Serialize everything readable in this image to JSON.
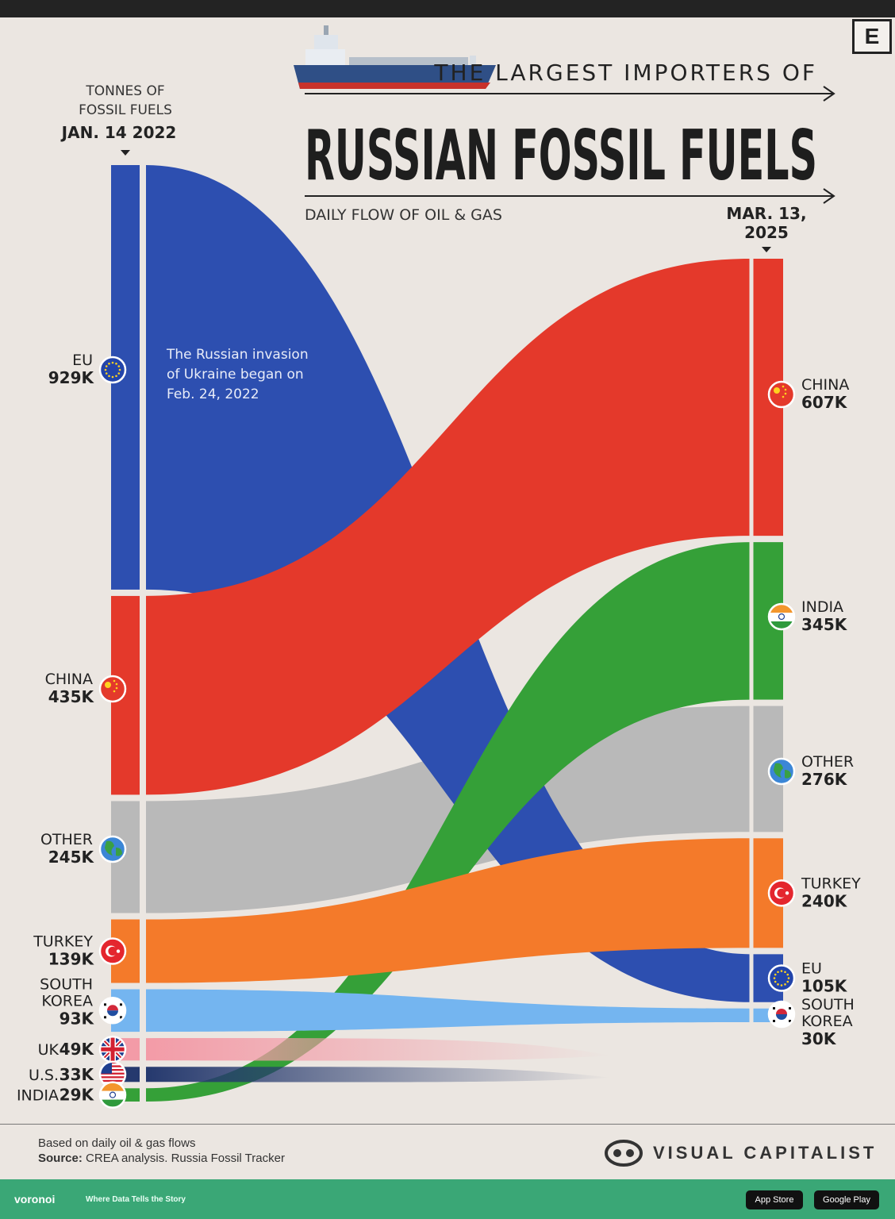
{
  "header": {
    "kicker": "THE LARGEST IMPORTERS OF",
    "title": "RUSSIAN FOSSIL FUELS",
    "subtitle": "DAILY FLOW OF OIL & GAS",
    "badge": "E"
  },
  "chart_data": {
    "type": "sankey",
    "unit_label": "TONNES OF\nFOSSIL FUELS",
    "left_date": "JAN. 14 2022",
    "right_date": "MAR. 13,\n2025",
    "annotation": "The Russian invasion\nof Ukraine began on\nFeb. 24, 2022",
    "left": [
      {
        "name": "EU",
        "value": 929,
        "label": "929K",
        "color": "#2d4fb0",
        "icon": "eu-flag-icon"
      },
      {
        "name": "CHINA",
        "value": 435,
        "label": "435K",
        "color": "#e4392b",
        "icon": "china-flag-icon"
      },
      {
        "name": "OTHER",
        "value": 245,
        "label": "245K",
        "color": "#b9b9b9",
        "icon": "globe-icon"
      },
      {
        "name": "TURKEY",
        "value": 139,
        "label": "139K",
        "color": "#f47a2a",
        "icon": "turkey-flag-icon"
      },
      {
        "name": "SOUTH\nKOREA",
        "value": 93,
        "label": "93K",
        "color": "#74b5f0",
        "icon": "south-korea-flag-icon"
      },
      {
        "name": "UK",
        "value": 49,
        "label": "49K",
        "color": "#f39ba7",
        "icon": "uk-flag-icon"
      },
      {
        "name": "U.S.",
        "value": 33,
        "label": "33K",
        "color": "#25396e",
        "icon": "us-flag-icon"
      },
      {
        "name": "INDIA",
        "value": 29,
        "label": "29K",
        "color": "#35a038",
        "icon": "india-flag-icon"
      }
    ],
    "right": [
      {
        "name": "CHINA",
        "value": 607,
        "label": "607K",
        "color": "#e4392b",
        "icon": "china-flag-icon"
      },
      {
        "name": "INDIA",
        "value": 345,
        "label": "345K",
        "color": "#35a038",
        "icon": "india-flag-icon"
      },
      {
        "name": "OTHER",
        "value": 276,
        "label": "276K",
        "color": "#b9b9b9",
        "icon": "globe-icon"
      },
      {
        "name": "TURKEY",
        "value": 240,
        "label": "240K",
        "color": "#f47a2a",
        "icon": "turkey-flag-icon"
      },
      {
        "name": "EU",
        "value": 105,
        "label": "105K",
        "color": "#2d4fb0",
        "icon": "eu-flag-icon"
      },
      {
        "name": "SOUTH\nKOREA",
        "value": 30,
        "label": "30K",
        "color": "#74b5f0",
        "icon": "south-korea-flag-icon"
      }
    ]
  },
  "footer": {
    "note": "Based on daily oil & gas flows",
    "source_label": "Source:",
    "source_text": "CREA analysis. Russia Fossil Tracker",
    "brand": "VISUAL CAPITALIST",
    "voronoi": "voronoi",
    "voronoi_tag": "Where Data Tells the Story",
    "app_store": "App Store",
    "google_play": "Google Play"
  }
}
